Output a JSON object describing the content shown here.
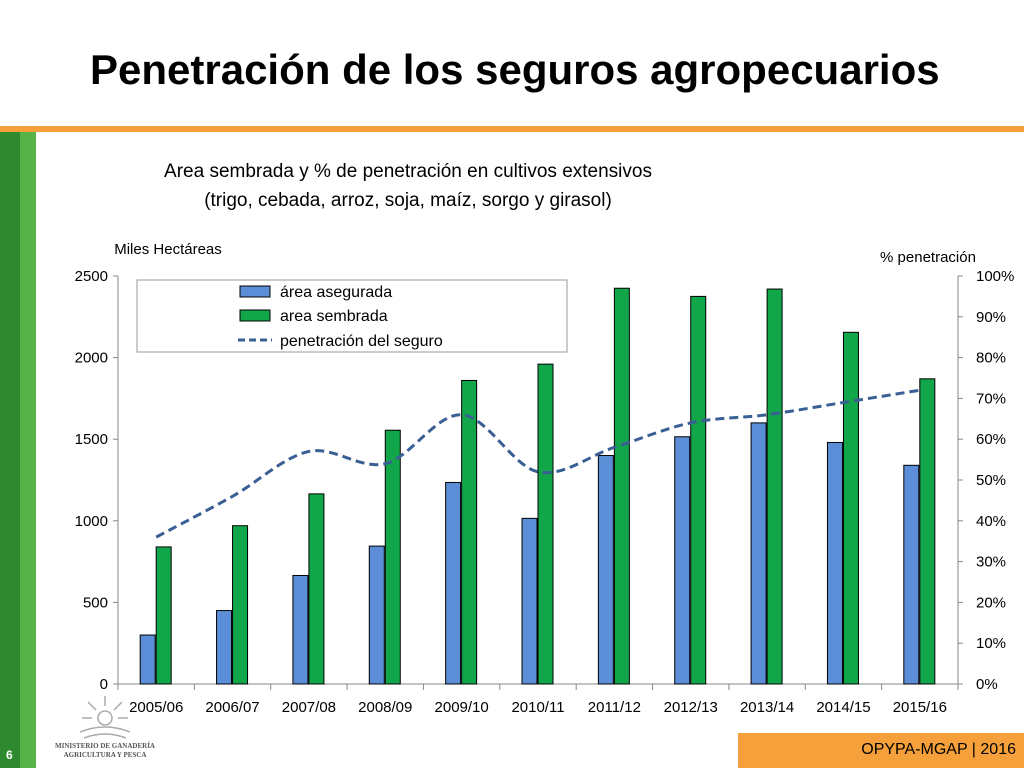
{
  "slide": {
    "title": "Penetración de los seguros agropecuarios",
    "page_number": "6",
    "footer": "OPYPA-MGAP | 2016",
    "logo_line1": "MINISTERIO DE GANADERÍA",
    "logo_line2": "AGRICULTURA Y PESCA"
  },
  "colors": {
    "orange": "#f5a03a",
    "green_dark": "#2f8a2f",
    "green_light": "#57b347",
    "bar_blue": "#5b8ed6",
    "bar_green": "#12a64a",
    "line_blue": "#3a5f94"
  },
  "chart_data": {
    "type": "bar",
    "title": "Area sembrada y % de penetración en cultivos extensivos",
    "subtitle": "(trigo, cebada, arroz, soja, maíz, sorgo y girasol)",
    "ylabel": "Miles Hectáreas",
    "y2label": "% penetración",
    "ylim": [
      0,
      2500
    ],
    "yticks": [
      "0",
      "500",
      "1000",
      "1500",
      "2000",
      "2500"
    ],
    "y2lim": [
      0,
      100
    ],
    "y2ticks": [
      "0%",
      "10%",
      "20%",
      "30%",
      "40%",
      "50%",
      "60%",
      "70%",
      "80%",
      "90%",
      "100%"
    ],
    "legend_position": "top-left",
    "grid": false,
    "categories": [
      "2005/06",
      "2006/07",
      "2007/08",
      "2008/09",
      "2009/10",
      "2010/11",
      "2011/12",
      "2012/13",
      "2013/14",
      "2014/15",
      "2015/16"
    ],
    "series": [
      {
        "name": "área asegurada",
        "type": "bar",
        "axis": "left",
        "values": [
          300,
          450,
          665,
          845,
          1235,
          1015,
          1400,
          1515,
          1600,
          1480,
          1340
        ]
      },
      {
        "name": "area sembrada",
        "type": "bar",
        "axis": "left",
        "values": [
          840,
          970,
          1165,
          1555,
          1860,
          1960,
          2425,
          2375,
          2420,
          2155,
          1870
        ]
      },
      {
        "name": "penetración del seguro",
        "type": "line",
        "axis": "right",
        "style": "dashed",
        "values": [
          36,
          46,
          57,
          54,
          66,
          52,
          58,
          64,
          66,
          69,
          72
        ]
      }
    ]
  }
}
